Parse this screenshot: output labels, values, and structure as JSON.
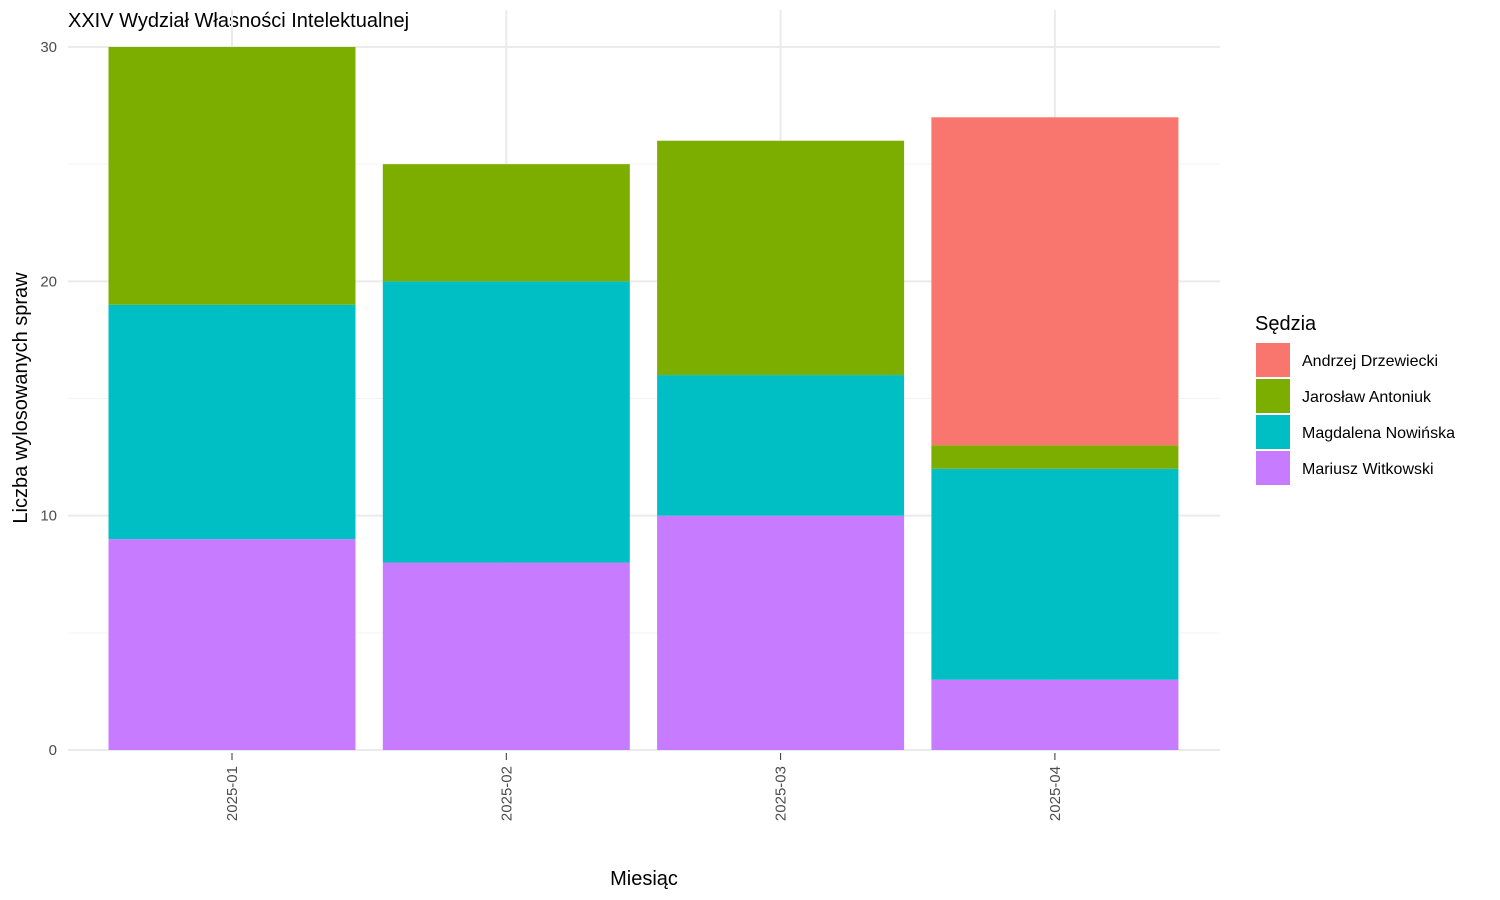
{
  "chart_data": {
    "type": "bar",
    "stacked": true,
    "title": "XXIV Wydział Własności Intelektualnej",
    "xlabel": "Miesiąc",
    "ylabel": "Liczba wylosowanych spraw",
    "ylim": [
      0,
      30
    ],
    "yticks": [
      0,
      10,
      20,
      30
    ],
    "grid": true,
    "legend_position": "right",
    "legend_title": "Sędzia",
    "categories": [
      "2025-01",
      "2025-02",
      "2025-03",
      "2025-04"
    ],
    "series": [
      {
        "name": "Andrzej Drzewiecki",
        "color": "#F8766D",
        "values": [
          0,
          0,
          0,
          14
        ]
      },
      {
        "name": "Jarosław Antoniuk",
        "color": "#7CAE00",
        "values": [
          11,
          5,
          10,
          1
        ]
      },
      {
        "name": "Magdalena Nowińska",
        "color": "#00BFC4",
        "values": [
          10,
          12,
          6,
          9
        ]
      },
      {
        "name": "Mariusz Witkowski",
        "color": "#C77CFF",
        "values": [
          9,
          8,
          10,
          3
        ]
      }
    ]
  }
}
